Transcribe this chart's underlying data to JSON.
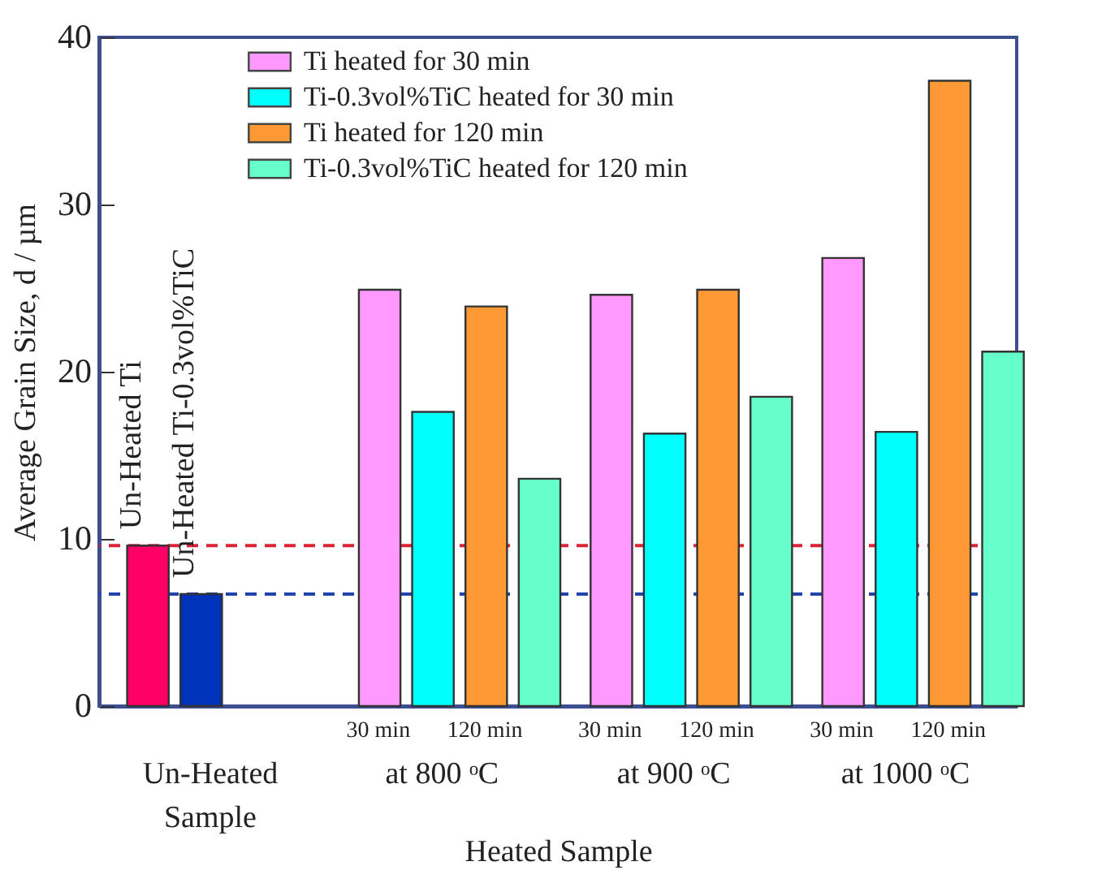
{
  "chart_data": {
    "type": "bar",
    "categories": [
      "Un-Heated Sample",
      "at 800 ᵒC",
      "at 900 ᵒC",
      "at 1000 ᵒC"
    ],
    "series": [
      {
        "color": "#ff0066",
        "values": [
          9.6,
          null,
          null,
          null
        ]
      },
      {
        "color": "#0033bb",
        "values": [
          6.7,
          null,
          null,
          null
        ]
      },
      {
        "name": "Ti heated for 30 min",
        "color": "#ff99ff",
        "values": [
          null,
          24.9,
          24.6,
          26.8
        ]
      },
      {
        "name": "Ti-0.3vol%TiC heated for 30 min",
        "color": "#00ffff",
        "values": [
          null,
          17.6,
          16.3,
          16.4
        ]
      },
      {
        "name": "Ti heated for 120 min",
        "color": "#ff9933",
        "values": [
          null,
          23.9,
          24.9,
          37.4
        ]
      },
      {
        "name": "Ti-0.3vol%TiC heated for 120 min",
        "color": "#66ffcc",
        "values": [
          null,
          13.6,
          18.5,
          21.2
        ]
      }
    ],
    "ylabel": "Average Grain Size, d / µm",
    "xlabel": "Heated Sample",
    "ylim": [
      0,
      40
    ],
    "yticks": [
      0,
      10,
      20,
      30,
      40
    ],
    "ref_lines": [
      {
        "axis": "y",
        "value": 9.6,
        "color": "#dd2233",
        "line_style": "dashed"
      },
      {
        "axis": "y",
        "value": 6.7,
        "color": "#2244aa",
        "line_style": "dashed"
      }
    ],
    "annotations": [
      {
        "text": "Un-Heated Ti",
        "x": "Un-Heated Sample",
        "y": 9.6
      },
      {
        "text": "Un-Heated Ti-0.3vol%TiC",
        "x": "Un-Heated Sample",
        "y": 6.7
      },
      "30 min",
      "120 min",
      "30 min",
      "120 min",
      "30 min",
      "120 min"
    ],
    "legend": "top",
    "grid": false
  }
}
